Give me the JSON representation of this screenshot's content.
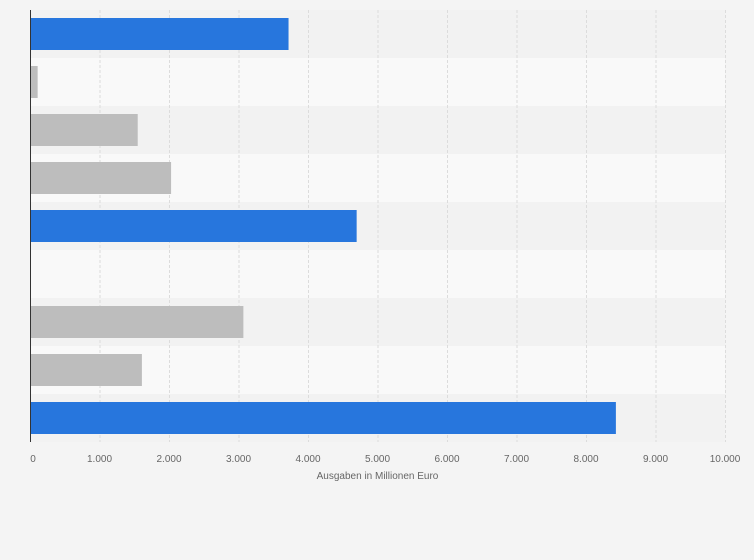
{
  "chart_data": {
    "type": "bar",
    "orientation": "horizontal",
    "title": "",
    "xlabel": "Ausgaben in Millionen Euro",
    "ylabel": "",
    "xlim": [
      0,
      10000
    ],
    "x_ticks": [
      0,
      1000,
      2000,
      3000,
      4000,
      5000,
      6000,
      7000,
      8000,
      9000,
      10000
    ],
    "x_tick_labels": [
      "0",
      "1.000",
      "2.000",
      "3.000",
      "4.000",
      "5.000",
      "6.000",
      "7.000",
      "8.000",
      "9.000",
      "10.000"
    ],
    "grid": true,
    "legend": "none",
    "categories": [
      "",
      "",
      "",
      "",
      "",
      "",
      "",
      "",
      ""
    ],
    "values": [
      3720,
      110,
      1550,
      2030,
      4700,
      null,
      3070,
      1610,
      8430
    ],
    "bar_colors": [
      "#2776dd",
      "#bdbdbd",
      "#bdbdbd",
      "#bdbdbd",
      "#2776dd",
      "#bdbdbd",
      "#bdbdbd",
      "#bdbdbd",
      "#2776dd"
    ],
    "colors": {
      "highlight": "#2776dd",
      "default": "#bdbdbd",
      "band_dark": "#f2f2f2",
      "band_light": "#f9f9f9",
      "background": "#f4f4f4",
      "gridline": "#dcdcdc",
      "axis": "#333333",
      "text": "#666666"
    }
  }
}
